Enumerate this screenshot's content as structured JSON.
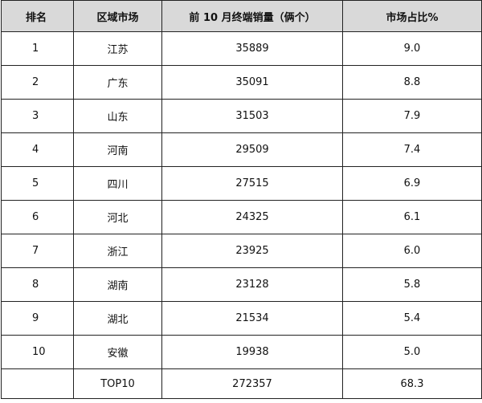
{
  "table": {
    "headers": [
      "排名",
      "区域市场",
      "前 10 月终端销量（俩个）",
      "市场占比%"
    ],
    "rows": [
      [
        "1",
        "江苏",
        "35889",
        "9.0"
      ],
      [
        "2",
        "广东",
        "35091",
        "8.8"
      ],
      [
        "3",
        "山东",
        "31503",
        "7.9"
      ],
      [
        "4",
        "河南",
        "29509",
        "7.4"
      ],
      [
        "5",
        "四川",
        "27515",
        "6.9"
      ],
      [
        "6",
        "河北",
        "24325",
        "6.1"
      ],
      [
        "7",
        "浙江",
        "23925",
        "6.0"
      ],
      [
        "8",
        "湖南",
        "23128",
        "5.8"
      ],
      [
        "9",
        "湖北",
        "21534",
        "5.4"
      ],
      [
        "10",
        "安徽",
        "19938",
        "5.0"
      ]
    ],
    "total": {
      "label": "TOP10",
      "sales": "272357",
      "share": "68.3"
    }
  }
}
